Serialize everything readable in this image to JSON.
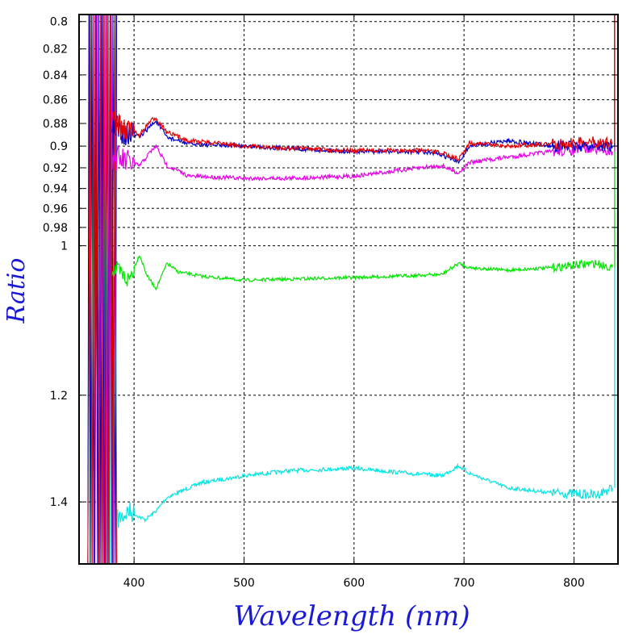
{
  "chart_data": {
    "type": "line",
    "xlabel": "Wavelength (nm)",
    "ylabel": "Ratio",
    "xlim": [
      350,
      840
    ],
    "ylim": [
      0.795,
      1.55
    ],
    "y_scale": "reciprocal",
    "x_ticks": [
      400,
      500,
      600,
      700,
      800
    ],
    "y_ticks": [
      0.8,
      0.82,
      0.84,
      0.86,
      0.88,
      0.9,
      0.92,
      0.94,
      0.96,
      0.98,
      1,
      1.2,
      1.4
    ],
    "y_tick_labels": [
      "0.8",
      "0.82",
      "0.84",
      "0.86",
      "0.88",
      "0.9",
      "0.92",
      "0.94",
      "0.96",
      "0.98",
      "1",
      "1.2",
      "1.4"
    ],
    "x_tick_labels": [
      "400",
      "500",
      "600",
      "700",
      "800"
    ],
    "grid": true,
    "series": [
      {
        "color": "#00e5e5",
        "x": [
          385,
          395,
          410,
          420,
          430,
          460,
          500,
          540,
          600,
          650,
          680,
          695,
          705,
          740,
          780,
          820,
          835
        ],
        "y": [
          1.44,
          1.42,
          1.44,
          1.42,
          1.39,
          1.36,
          1.345,
          1.335,
          1.33,
          1.34,
          1.345,
          1.325,
          1.34,
          1.37,
          1.38,
          1.385,
          1.37
        ]
      },
      {
        "color": "#00e600",
        "x": [
          380,
          395,
          405,
          412,
          420,
          430,
          440,
          460,
          500,
          560,
          620,
          680,
          695,
          705,
          740,
          780,
          820,
          835
        ],
        "y": [
          1.025,
          1.04,
          1.01,
          1.035,
          1.05,
          1.02,
          1.03,
          1.035,
          1.04,
          1.038,
          1.036,
          1.033,
          1.02,
          1.025,
          1.028,
          1.025,
          1.02,
          1.025
        ]
      },
      {
        "color": "#e600e6",
        "x": [
          380,
          395,
          405,
          415,
          420,
          430,
          450,
          500,
          540,
          600,
          660,
          680,
          695,
          705,
          740,
          780,
          820,
          835
        ],
        "y": [
          0.91,
          0.915,
          0.918,
          0.905,
          0.9,
          0.918,
          0.928,
          0.93,
          0.93,
          0.928,
          0.92,
          0.918,
          0.925,
          0.915,
          0.91,
          0.905,
          0.902,
          0.905
        ]
      },
      {
        "color": "#0000cc",
        "x": [
          380,
          395,
          405,
          415,
          420,
          430,
          450,
          500,
          540,
          600,
          660,
          680,
          695,
          705,
          740,
          780,
          820,
          835
        ],
        "y": [
          0.885,
          0.888,
          0.892,
          0.882,
          0.878,
          0.892,
          0.898,
          0.9,
          0.902,
          0.905,
          0.905,
          0.908,
          0.915,
          0.9,
          0.895,
          0.9,
          0.9,
          0.9
        ]
      },
      {
        "color": "#e60000",
        "x": [
          380,
          395,
          405,
          415,
          420,
          430,
          450,
          500,
          540,
          600,
          660,
          680,
          695,
          705,
          740,
          780,
          820,
          835
        ],
        "y": [
          0.88,
          0.885,
          0.89,
          0.878,
          0.875,
          0.888,
          0.895,
          0.9,
          0.902,
          0.904,
          0.904,
          0.906,
          0.912,
          0.897,
          0.9,
          0.898,
          0.896,
          0.898
        ]
      }
    ]
  }
}
